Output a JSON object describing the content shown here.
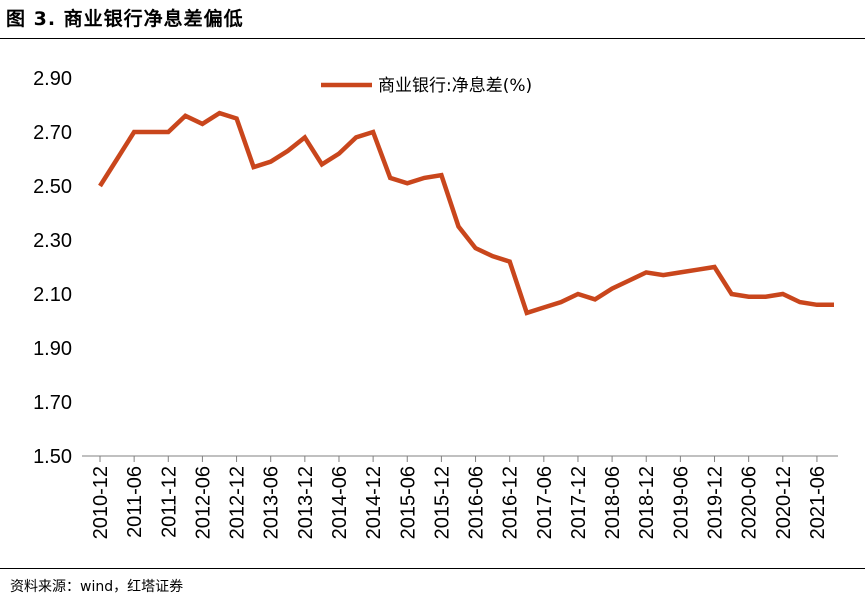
{
  "title": "图 3. 商业银行净息差偏低",
  "source": "资料来源：wind，红塔证券",
  "colors": {
    "series": "#C9461C",
    "axis": "#808080",
    "text": "#000000"
  },
  "chart_data": {
    "type": "line",
    "title": "",
    "xlabel": "",
    "ylabel": "",
    "ylim": [
      1.5,
      2.9
    ],
    "ytick_labels": [
      "2.90",
      "2.70",
      "2.50",
      "2.30",
      "2.10",
      "1.90",
      "1.70",
      "1.50"
    ],
    "ytick_values": [
      2.9,
      2.7,
      2.5,
      2.3,
      2.1,
      1.9,
      1.7,
      1.5
    ],
    "grid": false,
    "legend_position": "top-center",
    "xtick_labels": [
      "2010-12",
      "2011-06",
      "2011-12",
      "2012-06",
      "2012-12",
      "2013-06",
      "2013-12",
      "2014-06",
      "2014-12",
      "2015-06",
      "2015-12",
      "2016-06",
      "2016-12",
      "2017-06",
      "2017-12",
      "2018-06",
      "2018-12",
      "2019-06",
      "2019-12",
      "2020-06",
      "2020-12",
      "2021-06"
    ],
    "x": [
      "2010-12",
      "2011-03",
      "2011-06",
      "2011-09",
      "2011-12",
      "2012-03",
      "2012-06",
      "2012-09",
      "2012-12",
      "2013-03",
      "2013-06",
      "2013-09",
      "2013-12",
      "2014-03",
      "2014-06",
      "2014-09",
      "2014-12",
      "2015-03",
      "2015-06",
      "2015-09",
      "2015-12",
      "2016-03",
      "2016-06",
      "2016-09",
      "2016-12",
      "2017-03",
      "2017-06",
      "2017-09",
      "2017-12",
      "2018-03",
      "2018-06",
      "2018-09",
      "2018-12",
      "2019-03",
      "2019-06",
      "2019-09",
      "2019-12",
      "2020-03",
      "2020-06",
      "2020-09",
      "2020-12",
      "2021-03",
      "2021-06",
      "2021-09"
    ],
    "series": [
      {
        "name": "商业银行:净息差(%)",
        "color": "#C9461C",
        "values": [
          2.5,
          2.6,
          2.7,
          2.7,
          2.7,
          2.76,
          2.73,
          2.77,
          2.75,
          2.57,
          2.59,
          2.63,
          2.68,
          2.58,
          2.62,
          2.68,
          2.7,
          2.53,
          2.51,
          2.53,
          2.54,
          2.35,
          2.27,
          2.24,
          2.22,
          2.03,
          2.05,
          2.07,
          2.1,
          2.08,
          2.12,
          2.15,
          2.18,
          2.17,
          2.18,
          2.19,
          2.2,
          2.1,
          2.09,
          2.09,
          2.1,
          2.07,
          2.06,
          2.06
        ]
      }
    ]
  }
}
